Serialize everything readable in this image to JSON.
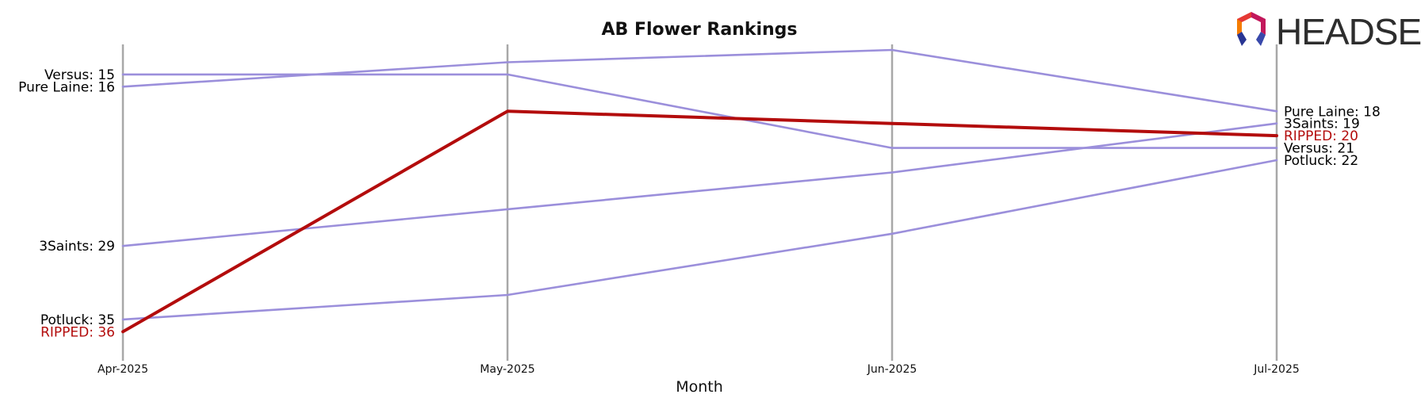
{
  "chart_data": {
    "type": "line",
    "title": "AB Flower Rankings",
    "xlabel": "Month",
    "ylabel": "",
    "x": [
      "Apr-2025",
      "May-2025",
      "Jun-2025",
      "Jul-2025"
    ],
    "y_inverted": true,
    "series": [
      {
        "name": "Versus",
        "values": [
          15,
          15,
          21,
          21
        ],
        "color": "#9b8fdb",
        "highlight": false
      },
      {
        "name": "Pure Laine",
        "values": [
          16,
          14,
          13,
          18
        ],
        "color": "#9b8fdb",
        "highlight": false
      },
      {
        "name": "3Saints",
        "values": [
          29,
          26,
          23,
          19
        ],
        "color": "#9b8fdb",
        "highlight": false
      },
      {
        "name": "Potluck",
        "values": [
          35,
          33,
          28,
          22
        ],
        "color": "#9b8fdb",
        "highlight": false
      },
      {
        "name": "RIPPED",
        "values": [
          36,
          18,
          19,
          20
        ],
        "color": "#b30c0c",
        "highlight": true
      }
    ],
    "start_labels": [
      {
        "text": "Versus: 15",
        "series": "Versus"
      },
      {
        "text": "Pure Laine: 16",
        "series": "Pure Laine"
      },
      {
        "text": "3Saints: 29",
        "series": "3Saints"
      },
      {
        "text": "Potluck: 35",
        "series": "Potluck"
      },
      {
        "text": "RIPPED: 36",
        "series": "RIPPED"
      }
    ],
    "end_labels": [
      {
        "text": "Pure Laine: 18",
        "series": "Pure Laine"
      },
      {
        "text": "3Saints: 19",
        "series": "3Saints"
      },
      {
        "text": "RIPPED: 20",
        "series": "RIPPED"
      },
      {
        "text": "Versus: 21",
        "series": "Versus"
      },
      {
        "text": "Potluck: 22",
        "series": "Potluck"
      }
    ],
    "grid": "vertical-only",
    "legend": "none"
  },
  "logo": {
    "text": "HEADSET"
  }
}
